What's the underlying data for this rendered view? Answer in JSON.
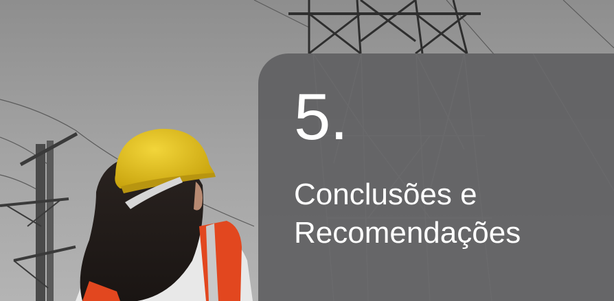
{
  "section": {
    "number": "5.",
    "title_line1": "Conclusões e",
    "title_line2": "Recomendações"
  },
  "colors": {
    "panel": "#606062",
    "text": "#ffffff",
    "helmet": "#e6c21a",
    "vest": "#e2471f"
  }
}
